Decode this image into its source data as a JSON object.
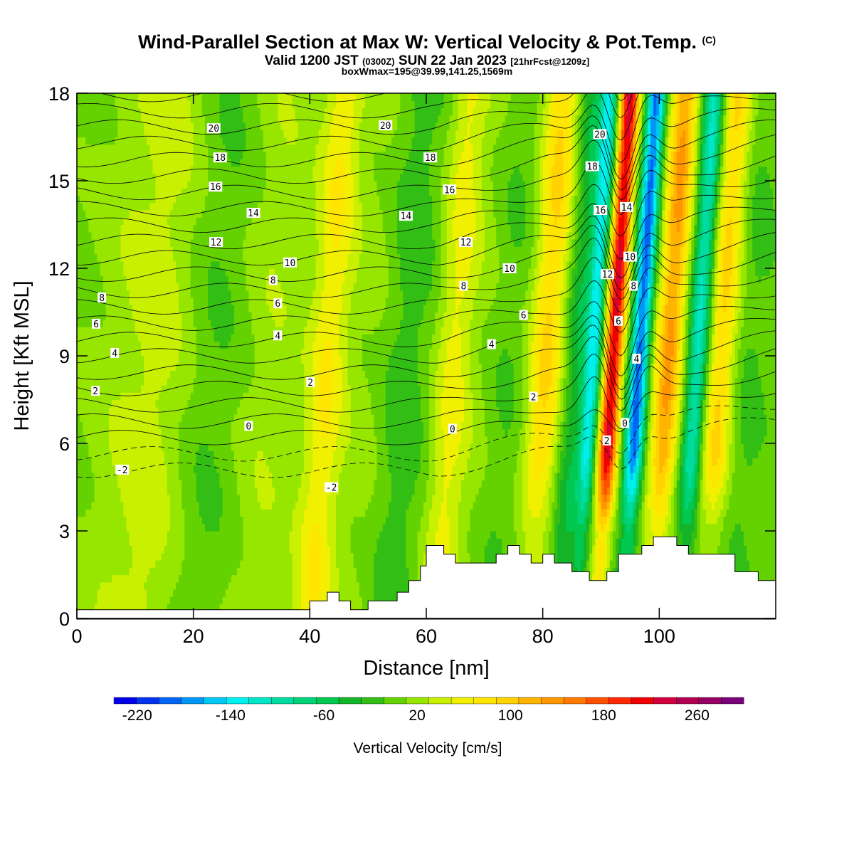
{
  "header": {
    "title": "Wind-Parallel Section at Max W: Vertical Velocity & Pot.Temp.",
    "copyright": "(C)",
    "valid_prefix": "Valid 1200 JST",
    "valid_utc": "(0300Z)",
    "valid_date": "SUN 22 Jan 2023",
    "forecast": "[21hrFcst@1209z]",
    "box_info": "boxWmax=195@39.99,141.25,1569m"
  },
  "chart_data": {
    "type": "heatmap",
    "xlabel": "Distance [nm]",
    "ylabel": "Height [Kft MSL]",
    "xlim": [
      0,
      120
    ],
    "ylim": [
      0,
      18
    ],
    "x_ticks": [
      0,
      20,
      40,
      60,
      80,
      100
    ],
    "y_ticks": [
      0,
      3,
      6,
      9,
      12,
      15,
      18
    ],
    "colorbar": {
      "label": "Vertical Velocity [cm/s]",
      "min": -240,
      "max": 300,
      "step": 20,
      "tick_labels": [
        -220,
        -140,
        -60,
        20,
        100,
        180,
        260
      ],
      "colors": [
        "#0000e6",
        "#0032f0",
        "#0064f5",
        "#0096f5",
        "#00c8f5",
        "#00f0f0",
        "#00e6c8",
        "#00dca0",
        "#00d278",
        "#00c850",
        "#14b428",
        "#32be14",
        "#64d200",
        "#96e600",
        "#c8f000",
        "#f0f000",
        "#ffe600",
        "#ffd200",
        "#ffb400",
        "#ff9600",
        "#ff7800",
        "#ff5000",
        "#ff2800",
        "#f00000",
        "#d2003c",
        "#b40050",
        "#960064",
        "#780078"
      ]
    },
    "theta_contours": {
      "style": "solid black lines labeled with isentrope values; negative values dashed",
      "labels": [
        {
          "text": "20",
          "x": 23.5,
          "y": 16.8
        },
        {
          "text": "18",
          "x": 24.6,
          "y": 15.8
        },
        {
          "text": "16",
          "x": 23.8,
          "y": 14.8
        },
        {
          "text": "14",
          "x": 30.3,
          "y": 13.9
        },
        {
          "text": "12",
          "x": 23.9,
          "y": 12.9
        },
        {
          "text": "10",
          "x": 36.6,
          "y": 12.2
        },
        {
          "text": "8",
          "x": 4.3,
          "y": 11.0
        },
        {
          "text": "8",
          "x": 33.7,
          "y": 11.6
        },
        {
          "text": "6",
          "x": 3.3,
          "y": 10.1
        },
        {
          "text": "6",
          "x": 34.5,
          "y": 10.8
        },
        {
          "text": "4",
          "x": 6.5,
          "y": 9.1
        },
        {
          "text": "4",
          "x": 34.5,
          "y": 9.7
        },
        {
          "text": "2",
          "x": 3.2,
          "y": 7.8
        },
        {
          "text": "2",
          "x": 40.1,
          "y": 8.1
        },
        {
          "text": "0",
          "x": 29.5,
          "y": 6.6
        },
        {
          "text": "-2",
          "x": 7.8,
          "y": 5.1
        },
        {
          "text": "-2",
          "x": 43.7,
          "y": 4.5
        },
        {
          "text": "20",
          "x": 53.0,
          "y": 16.9
        },
        {
          "text": "18",
          "x": 60.7,
          "y": 15.8
        },
        {
          "text": "16",
          "x": 64.0,
          "y": 14.7
        },
        {
          "text": "14",
          "x": 56.5,
          "y": 13.8
        },
        {
          "text": "12",
          "x": 66.8,
          "y": 12.9
        },
        {
          "text": "10",
          "x": 74.3,
          "y": 12.0
        },
        {
          "text": "8",
          "x": 66.4,
          "y": 11.4
        },
        {
          "text": "6",
          "x": 76.7,
          "y": 10.4
        },
        {
          "text": "4",
          "x": 71.2,
          "y": 9.4
        },
        {
          "text": "2",
          "x": 78.4,
          "y": 7.6
        },
        {
          "text": "0",
          "x": 64.5,
          "y": 6.5
        },
        {
          "text": "20",
          "x": 89.8,
          "y": 16.6
        },
        {
          "text": "18",
          "x": 88.5,
          "y": 15.5
        },
        {
          "text": "16",
          "x": 89.9,
          "y": 14.0
        },
        {
          "text": "14",
          "x": 94.4,
          "y": 14.1
        },
        {
          "text": "12",
          "x": 91.1,
          "y": 11.8
        },
        {
          "text": "10",
          "x": 95.0,
          "y": 12.4
        },
        {
          "text": "8",
          "x": 95.6,
          "y": 11.4
        },
        {
          "text": "6",
          "x": 93.0,
          "y": 10.2
        },
        {
          "text": "4",
          "x": 96.1,
          "y": 8.9
        },
        {
          "text": "2",
          "x": 91.0,
          "y": 6.1
        },
        {
          "text": "0",
          "x": 94.1,
          "y": 6.7
        }
      ]
    },
    "terrain": {
      "description": "white terrain mask along bottom",
      "x": [
        0,
        39,
        40,
        43,
        45,
        47,
        50,
        52,
        55,
        57,
        59,
        60,
        61,
        63,
        65,
        70,
        72,
        74,
        76,
        78,
        80,
        82,
        85,
        88,
        91,
        93,
        95,
        97,
        99,
        101,
        103,
        105,
        107,
        110,
        113,
        115,
        117,
        119,
        120
      ],
      "y": [
        0.3,
        0.3,
        0.6,
        0.9,
        0.6,
        0.3,
        0.6,
        0.6,
        0.9,
        1.3,
        1.8,
        2.5,
        2.5,
        2.2,
        1.9,
        1.9,
        2.2,
        2.5,
        2.2,
        1.9,
        2.2,
        1.9,
        1.6,
        1.3,
        1.6,
        2.2,
        2.2,
        2.5,
        2.8,
        2.8,
        2.5,
        2.2,
        2.2,
        2.2,
        1.6,
        1.6,
        1.3,
        1.3,
        1.3
      ]
    },
    "w_field_features": [
      {
        "x": 9,
        "w": 30,
        "width": 8
      },
      {
        "x": 15,
        "w": 40,
        "width": 6
      },
      {
        "x": 21,
        "w": -25,
        "width": 10
      },
      {
        "x": 32,
        "w": 35,
        "width": 6
      },
      {
        "x": 42,
        "w": 55,
        "width": 3
      },
      {
        "x": 47,
        "w": -30,
        "width": 3
      },
      {
        "x": 46,
        "w": 55,
        "width": 5
      },
      {
        "x": 56,
        "w": -30,
        "width": 4
      },
      {
        "x": 64,
        "w": 60,
        "width": 3
      },
      {
        "x": 68,
        "w": 20,
        "width": 5
      },
      {
        "x": 73,
        "w": -20,
        "width": 4
      },
      {
        "x": 80,
        "w": 90,
        "width": 3
      },
      {
        "x": 85,
        "w": -60,
        "width": 2
      },
      {
        "x": 88,
        "w": -140,
        "width": 1.5
      },
      {
        "x": 91.5,
        "w": 230,
        "width": 1.6
      },
      {
        "x": 96,
        "w": -200,
        "width": 1.6
      },
      {
        "x": 101,
        "w": 130,
        "width": 2.4
      },
      {
        "x": 106,
        "w": -120,
        "width": 1.8
      },
      {
        "x": 110,
        "w": 90,
        "width": 2.5
      },
      {
        "x": 115,
        "w": -20,
        "width": 3
      }
    ]
  }
}
